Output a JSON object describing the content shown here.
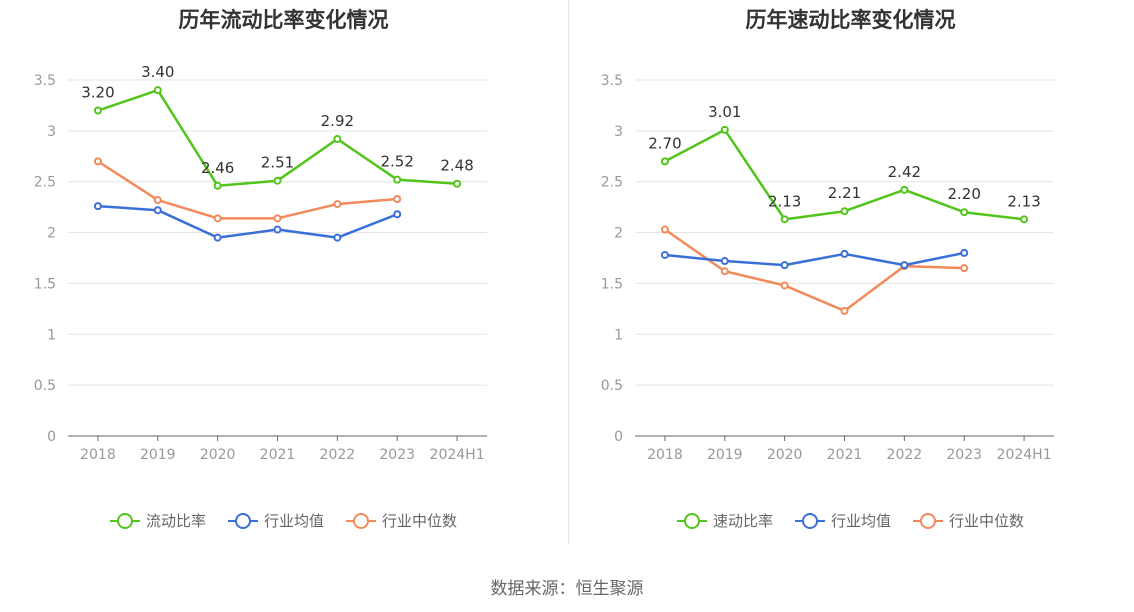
{
  "source": "数据来源：恒生聚源",
  "chart_data": [
    {
      "type": "line",
      "title": "历年流动比率变化情况",
      "categories": [
        "2018",
        "2019",
        "2020",
        "2021",
        "2022",
        "2023",
        "2024H1"
      ],
      "ylim": [
        0,
        3.5
      ],
      "yticks": [
        "0",
        "0.5",
        "1",
        "1.5",
        "2",
        "2.5",
        "3",
        "3.5"
      ],
      "grid": true,
      "legend_position": "bottom",
      "series": [
        {
          "name": "流动比率",
          "color": "#52c41a",
          "values": [
            3.2,
            3.4,
            2.46,
            2.51,
            2.92,
            2.52,
            2.48
          ],
          "labels": [
            "3.20",
            "3.40",
            "2.46",
            "2.51",
            "2.92",
            "2.52",
            "2.48"
          ]
        },
        {
          "name": "行业均值",
          "color": "#3a6fd8",
          "values": [
            2.26,
            2.22,
            1.95,
            2.03,
            1.95,
            2.18,
            null
          ]
        },
        {
          "name": "行业中位数",
          "color": "#f28a5b",
          "values": [
            2.7,
            2.32,
            2.14,
            2.14,
            2.28,
            2.33,
            null
          ]
        }
      ]
    },
    {
      "type": "line",
      "title": "历年速动比率变化情况",
      "categories": [
        "2018",
        "2019",
        "2020",
        "2021",
        "2022",
        "2023",
        "2024H1"
      ],
      "ylim": [
        0,
        3.5
      ],
      "yticks": [
        "0",
        "0.5",
        "1",
        "1.5",
        "2",
        "2.5",
        "3",
        "3.5"
      ],
      "grid": true,
      "legend_position": "bottom",
      "series": [
        {
          "name": "速动比率",
          "color": "#52c41a",
          "values": [
            2.7,
            3.01,
            2.13,
            2.21,
            2.42,
            2.2,
            2.13
          ],
          "labels": [
            "2.70",
            "3.01",
            "2.13",
            "2.21",
            "2.42",
            "2.20",
            "2.13"
          ]
        },
        {
          "name": "行业均值",
          "color": "#3a6fd8",
          "values": [
            1.78,
            1.72,
            1.68,
            1.79,
            1.68,
            1.8,
            null
          ]
        },
        {
          "name": "行业中位数",
          "color": "#f28a5b",
          "values": [
            2.03,
            1.62,
            1.48,
            1.23,
            1.67,
            1.65,
            null
          ]
        }
      ]
    }
  ]
}
